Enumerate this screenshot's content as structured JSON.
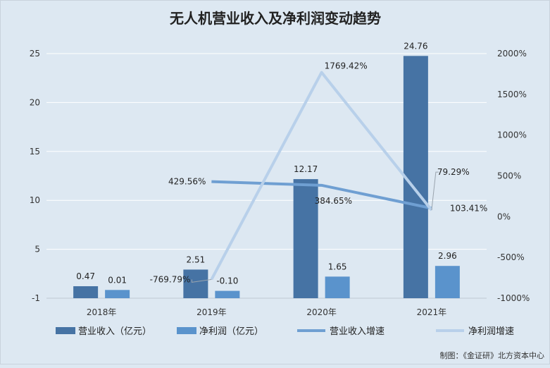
{
  "chart_data": {
    "type": "bar",
    "title": "无人机营业收入及净利润变动趋势",
    "categories": [
      "2018年",
      "2019年",
      "2020年",
      "2021年"
    ],
    "series": [
      {
        "name": "营业收入（亿元）",
        "kind": "bar",
        "axis": "left",
        "color": "#4673a4",
        "values": [
          0.47,
          2.51,
          12.17,
          24.76
        ],
        "labels": [
          "0.47",
          "2.51",
          "12.17",
          "24.76"
        ]
      },
      {
        "name": "净利润（亿元）",
        "kind": "bar",
        "axis": "left",
        "color": "#5a93cc",
        "values": [
          0.01,
          -0.1,
          1.65,
          2.96
        ],
        "labels": [
          "0.01",
          "-0.10",
          "1.65",
          "2.96"
        ]
      },
      {
        "name": "营业收入增速",
        "kind": "line",
        "axis": "right",
        "color": "#6f9fd2",
        "values": [
          null,
          429.56,
          384.65,
          103.41
        ],
        "labels": [
          "",
          "429.56%",
          "384.65%",
          "103.41%"
        ]
      },
      {
        "name": "净利润增速",
        "kind": "line",
        "axis": "right",
        "color": "#b8d0ea",
        "values": [
          null,
          -769.79,
          1769.42,
          79.29
        ],
        "labels": [
          "",
          "-769.79%",
          "1769.42%",
          "79.29%"
        ]
      }
    ],
    "yleft_ticks": [
      "25",
      "20",
      "15",
      "10",
      "5",
      "-1"
    ],
    "yright_ticks": [
      "2000%",
      "1500%",
      "1000%",
      "500%",
      "0%",
      "-500%",
      "-1000%"
    ],
    "ylim_left": [
      -1,
      25
    ],
    "ylim_right": [
      -1000,
      2000
    ],
    "grid": true,
    "legend_position": "bottom"
  },
  "credit": "制图：《金证研》北方资本中心"
}
